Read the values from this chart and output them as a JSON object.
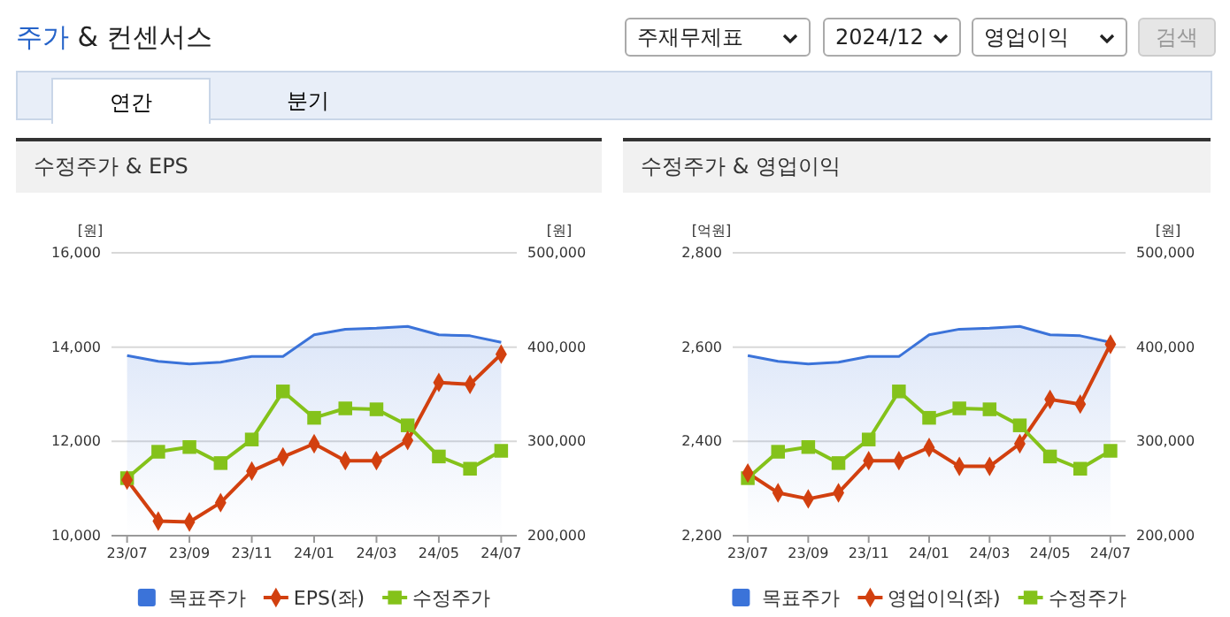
{
  "chart_data": [
    {
      "type": "other",
      "title": "주가 & 컨센서스",
      "annotations": [
        "주재무제표",
        "2024/12",
        "영업이익",
        "검색",
        "연간",
        "분기"
      ]
    },
    {
      "type": "line",
      "title": "수정주가 & EPS",
      "ylabel": "[원]",
      "y2label": "[원]",
      "categories": [
        "23/07",
        null,
        "23/09",
        null,
        "23/11",
        null,
        "24/01",
        null,
        "24/03",
        null,
        "24/05",
        null,
        "24/07"
      ],
      "series": [
        {
          "name": "목표주가",
          "type": "area",
          "axis": "y2",
          "color": "#3b73d9",
          "marker": "none",
          "values": [
            391000,
            385000,
            382000,
            384000,
            390000,
            390000,
            413000,
            419000,
            420000,
            422000,
            413000,
            412000,
            405000
          ]
        },
        {
          "name": "EPS(좌)",
          "type": "line",
          "color": "#d2400f",
          "marker": "diamond",
          "values": [
            11180,
            10310,
            10290,
            10700,
            11370,
            11670,
            11950,
            11590,
            11590,
            12020,
            13250,
            13210,
            13850
          ]
        },
        {
          "name": "수정주가",
          "type": "line",
          "axis": "y2",
          "color": "#84c21a",
          "marker": "square",
          "values": [
            261000,
            289000,
            294000,
            277000,
            302000,
            353000,
            325000,
            335000,
            334000,
            317000,
            284000,
            271000,
            290000
          ]
        }
      ],
      "ylim": [
        10000,
        16000
      ],
      "yticks": [
        {
          "value": 10000,
          "label": "10,000"
        },
        {
          "value": 12000,
          "label": "12,000"
        },
        {
          "value": 14000,
          "label": "14,000"
        },
        {
          "value": 16000,
          "label": "16,000"
        }
      ],
      "y2lim": [
        200000,
        500000
      ],
      "y2ticks": [
        {
          "value": 200000,
          "label": "200,000"
        },
        {
          "value": 300000,
          "label": "300,000"
        },
        {
          "value": 400000,
          "label": "400,000"
        },
        {
          "value": 500000,
          "label": "500,000"
        }
      ],
      "grid": "y",
      "legend": "bottom",
      "line_style": "solid"
    },
    {
      "type": "line",
      "title": "수정주가 & 영업이익",
      "ylabel": "[억원]",
      "y2label": "[원]",
      "categories": [
        "23/07",
        null,
        "23/09",
        null,
        "23/11",
        null,
        "24/01",
        null,
        "24/03",
        null,
        "24/05",
        null,
        "24/07"
      ],
      "series": [
        {
          "name": "목표주가",
          "type": "area",
          "axis": "y2",
          "color": "#3b73d9",
          "marker": "none",
          "values": [
            391000,
            385000,
            382000,
            384000,
            390000,
            390000,
            413000,
            419000,
            420000,
            422000,
            413000,
            412000,
            405000
          ]
        },
        {
          "name": "영업이익(좌)",
          "type": "line",
          "color": "#d2400f",
          "marker": "diamond",
          "values": [
            2333,
            2291,
            2278,
            2291,
            2359,
            2359,
            2387,
            2347,
            2347,
            2395,
            2489,
            2479,
            2606
          ]
        },
        {
          "name": "수정주가",
          "type": "line",
          "axis": "y2",
          "color": "#84c21a",
          "marker": "square",
          "values": [
            261000,
            289000,
            294000,
            277000,
            302000,
            353000,
            325000,
            335000,
            334000,
            317000,
            284000,
            271000,
            290000
          ]
        }
      ],
      "ylim": [
        2200,
        2800
      ],
      "yticks": [
        {
          "value": 2200,
          "label": "2,200"
        },
        {
          "value": 2400,
          "label": "2,400"
        },
        {
          "value": 2600,
          "label": "2,600"
        },
        {
          "value": 2800,
          "label": "2,800"
        }
      ],
      "y2lim": [
        200000,
        500000
      ],
      "y2ticks": [
        {
          "value": 200000,
          "label": "200,000"
        },
        {
          "value": 300000,
          "label": "300,000"
        },
        {
          "value": 400000,
          "label": "400,000"
        },
        {
          "value": 500000,
          "label": "500,000"
        }
      ],
      "grid": "y",
      "legend": "bottom",
      "line_style": "solid"
    }
  ]
}
